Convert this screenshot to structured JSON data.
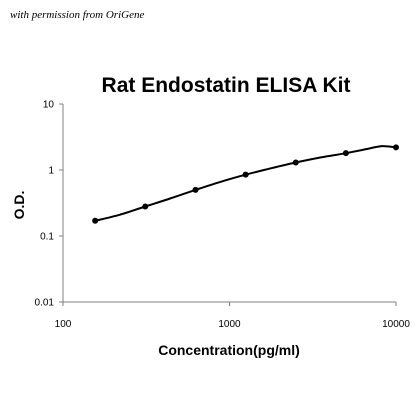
{
  "credit": "with permission from OriGene",
  "chart_data": {
    "type": "scatter",
    "title": "Rat Endostatin ELISA Kit",
    "xlabel": "Concentration(pg/ml)",
    "ylabel": "O.D.",
    "xscale": "log",
    "yscale": "log",
    "xlim": [
      100,
      10000
    ],
    "ylim": [
      0.01,
      10
    ],
    "xticks": [
      100,
      1000,
      10000
    ],
    "xtick_labels": [
      "100",
      "1000",
      "10000"
    ],
    "yticks": [
      0.01,
      0.1,
      1,
      10
    ],
    "ytick_labels": [
      "0.01",
      "0.1",
      "1",
      "10"
    ],
    "grid": false,
    "legend": false,
    "fit_line": true,
    "points": [
      {
        "x": 156,
        "y": 0.17
      },
      {
        "x": 312,
        "y": 0.28
      },
      {
        "x": 625,
        "y": 0.5
      },
      {
        "x": 1250,
        "y": 0.85
      },
      {
        "x": 2500,
        "y": 1.3
      },
      {
        "x": 5000,
        "y": 1.8
      },
      {
        "x": 10000,
        "y": 2.2
      }
    ],
    "curve": [
      {
        "x": 156,
        "y": 0.17
      },
      {
        "x": 220,
        "y": 0.21
      },
      {
        "x": 312,
        "y": 0.28
      },
      {
        "x": 440,
        "y": 0.37
      },
      {
        "x": 625,
        "y": 0.5
      },
      {
        "x": 880,
        "y": 0.66
      },
      {
        "x": 1250,
        "y": 0.85
      },
      {
        "x": 1770,
        "y": 1.06
      },
      {
        "x": 2500,
        "y": 1.3
      },
      {
        "x": 3540,
        "y": 1.55
      },
      {
        "x": 5000,
        "y": 1.8
      },
      {
        "x": 6500,
        "y": 2.05
      },
      {
        "x": 8200,
        "y": 2.3
      },
      {
        "x": 10000,
        "y": 2.2
      }
    ],
    "colors": {
      "line": "#000000",
      "marker": "#000000",
      "axis": "#808080"
    }
  }
}
